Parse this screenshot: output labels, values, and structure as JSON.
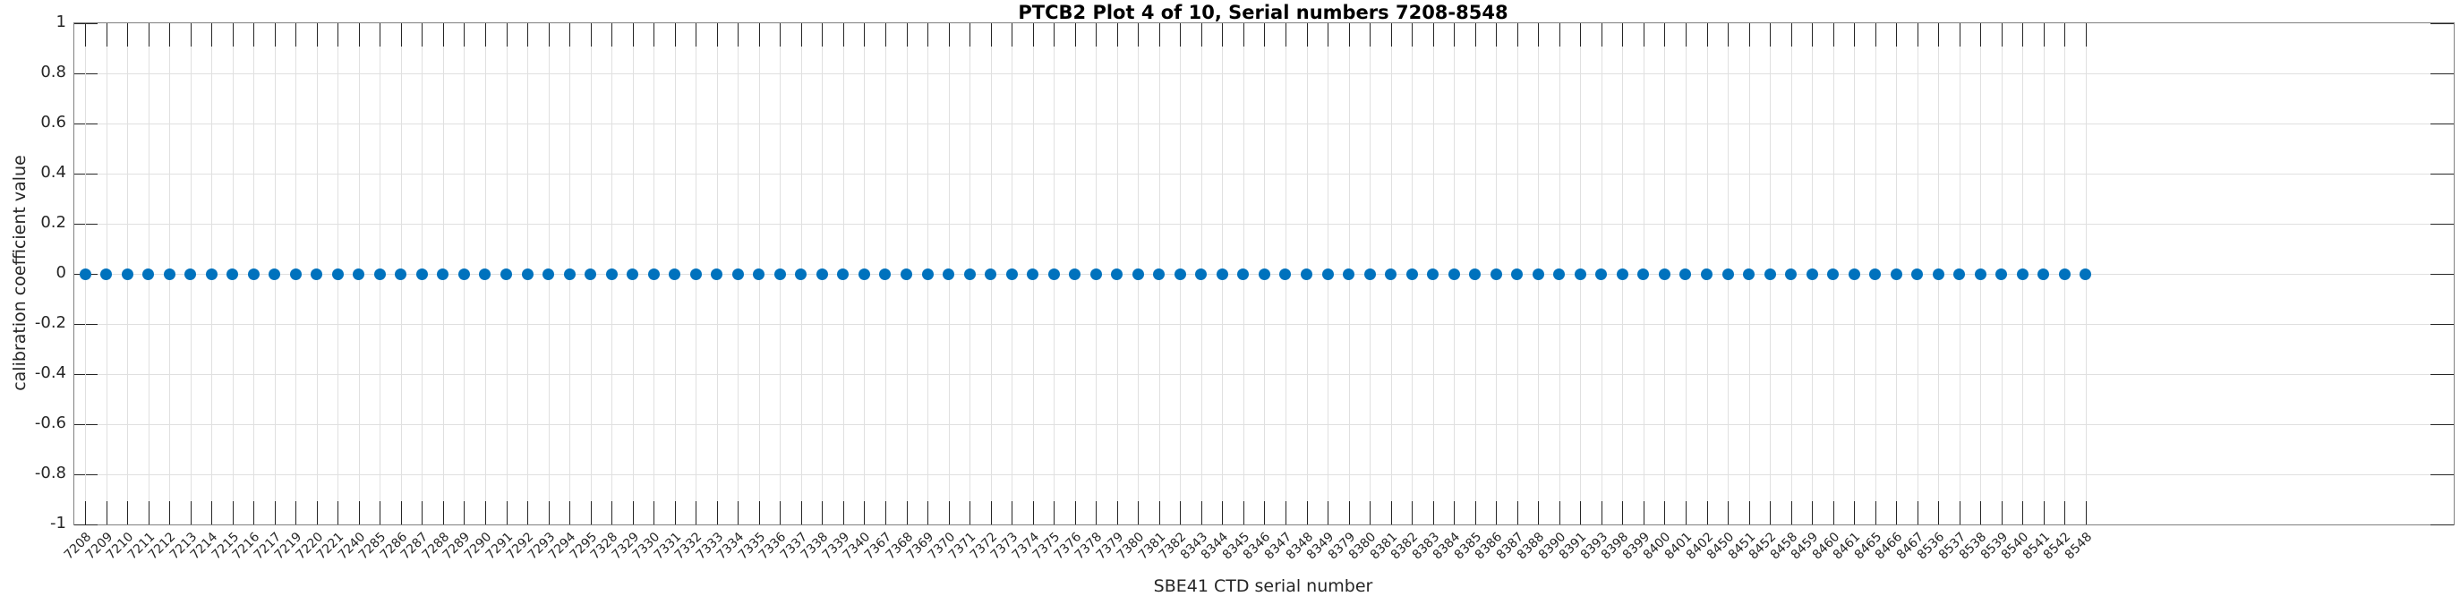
{
  "figure_title": "PTCB2 Plot 4 of 10, Serial numbers 7208-8548",
  "colors": {
    "marker": "#0072BD",
    "grid": "#e0e0e0",
    "box": "#808080",
    "tick": "#262626",
    "text": "#262626",
    "title_text": "#000000"
  },
  "chart_data": {
    "type": "scatter",
    "title": "PTCB2 Plot 4 of 10, Serial numbers 7208-8548",
    "xlabel": "SBE41 CTD serial number",
    "ylabel": "calibration coefficient value",
    "ylim": [
      -1,
      1
    ],
    "ytick_labels": [
      "1",
      "0.8",
      "0.6",
      "0.4",
      "0.2",
      "0",
      "-0.2",
      "-0.4",
      "-0.6",
      "-0.8",
      "-1"
    ],
    "grid": true,
    "legend": null,
    "marker_style": "filled-circle",
    "categories": [
      "7208",
      "7209",
      "7210",
      "7211",
      "7212",
      "7213",
      "7214",
      "7215",
      "7216",
      "7217",
      "7219",
      "7220",
      "7221",
      "7240",
      "7285",
      "7286",
      "7287",
      "7288",
      "7289",
      "7290",
      "7291",
      "7292",
      "7293",
      "7294",
      "7295",
      "7328",
      "7329",
      "7330",
      "7331",
      "7332",
      "7333",
      "7334",
      "7335",
      "7336",
      "7337",
      "7338",
      "7339",
      "7340",
      "7367",
      "7368",
      "7369",
      "7370",
      "7371",
      "7372",
      "7373",
      "7374",
      "7375",
      "7376",
      "7378",
      "7379",
      "7380",
      "7381",
      "7382",
      "8343",
      "8344",
      "8345",
      "8346",
      "8347",
      "8348",
      "8349",
      "8379",
      "8380",
      "8381",
      "8382",
      "8383",
      "8384",
      "8385",
      "8386",
      "8387",
      "8388",
      "8390",
      "8391",
      "8393",
      "8398",
      "8399",
      "8400",
      "8401",
      "8402",
      "8450",
      "8451",
      "8452",
      "8458",
      "8459",
      "8460",
      "8461",
      "8465",
      "8466",
      "8467",
      "8536",
      "8537",
      "8538",
      "8539",
      "8540",
      "8541",
      "8542",
      "8548"
    ],
    "series": [
      {
        "name": "calibration coefficient value",
        "values": [
          0,
          0,
          0,
          0,
          0,
          0,
          0,
          0,
          0,
          0,
          0,
          0,
          0,
          0,
          0,
          0,
          0,
          0,
          0,
          0,
          0,
          0,
          0,
          0,
          0,
          0,
          0,
          0,
          0,
          0,
          0,
          0,
          0,
          0,
          0,
          0,
          0,
          0,
          0,
          0,
          0,
          0,
          0,
          0,
          0,
          0,
          0,
          0,
          0,
          0,
          0,
          0,
          0,
          0,
          0,
          0,
          0,
          0,
          0,
          0,
          0,
          0,
          0,
          0,
          0,
          0,
          0,
          0,
          0,
          0,
          0,
          0,
          0,
          0,
          0,
          0,
          0,
          0,
          0,
          0,
          0,
          0,
          0,
          0,
          0,
          0,
          0,
          0,
          0,
          0,
          0,
          0,
          0,
          0,
          0,
          0
        ]
      }
    ]
  }
}
